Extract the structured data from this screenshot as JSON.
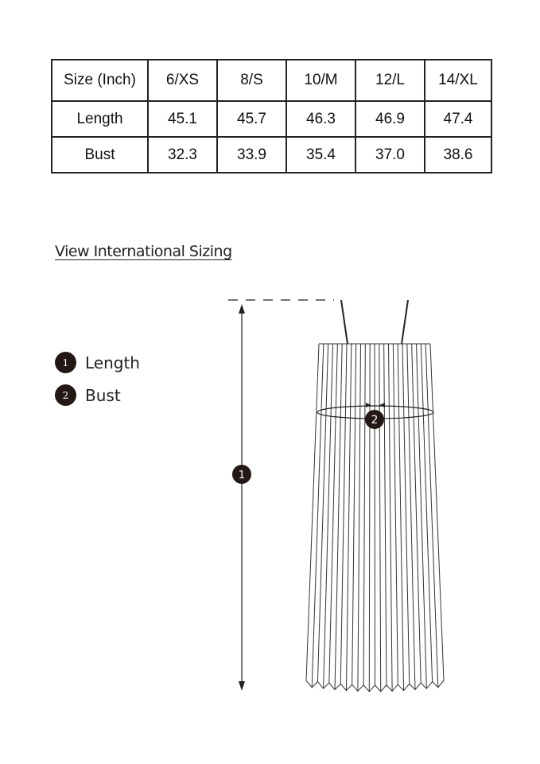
{
  "table": {
    "headers": [
      "Size (Inch)",
      "6/XS",
      "8/S",
      "10/M",
      "12/L",
      "14/XL"
    ],
    "rows": [
      {
        "label": "Length",
        "values": [
          "45.1",
          "45.7",
          "46.3",
          "46.9",
          "47.4"
        ]
      },
      {
        "label": "Bust",
        "values": [
          "32.3",
          "33.9",
          "35.4",
          "37.0",
          "38.6"
        ]
      }
    ]
  },
  "link": "View International Sizing",
  "legend": [
    {
      "num": "1",
      "label": "Length"
    },
    {
      "num": "2",
      "label": "Bust"
    }
  ],
  "diagram": {
    "marker_length": "1",
    "marker_bust": "2"
  }
}
